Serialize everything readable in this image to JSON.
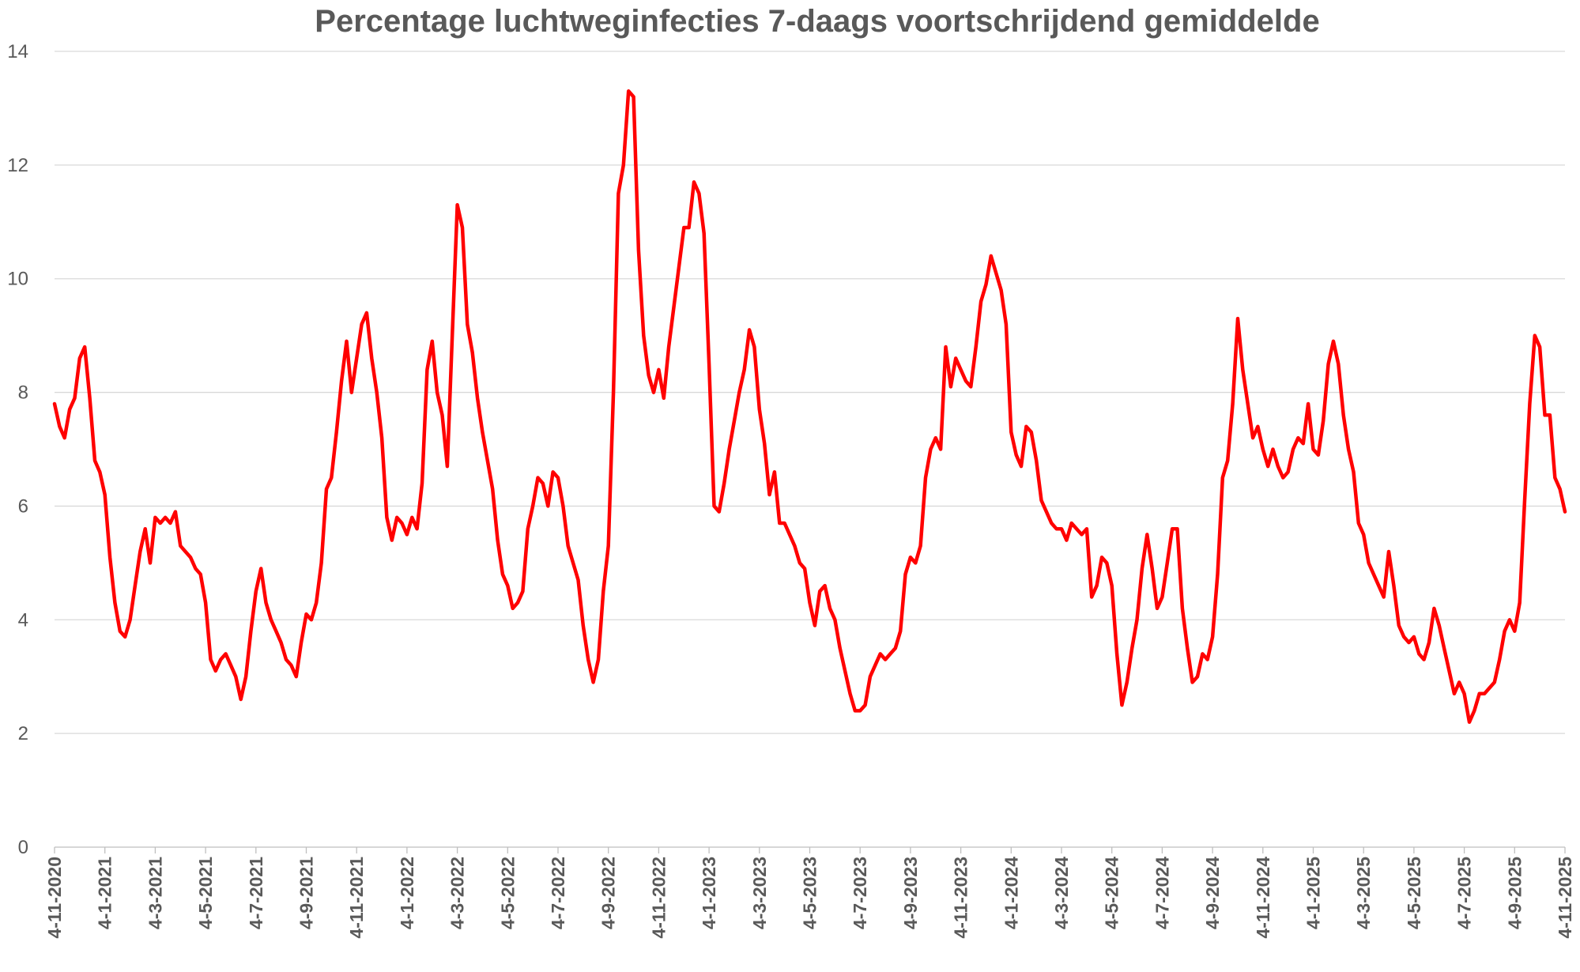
{
  "chart_data": {
    "type": "line",
    "title": "Percentage luchtweginfecties 7-daags voortschrijdend gemiddelde",
    "xlabel": "",
    "ylabel": "",
    "ylim": [
      0,
      14
    ],
    "yticks": [
      0,
      2,
      4,
      6,
      8,
      10,
      12,
      14
    ],
    "grid": true,
    "legend": "none",
    "x_tick_labels": [
      "4-11-2020",
      "4-1-2021",
      "4-3-2021",
      "4-5-2021",
      "4-7-2021",
      "4-9-2021",
      "4-11-2021",
      "4-1-2022",
      "4-3-2022",
      "4-5-2022",
      "4-7-2022",
      "4-9-2022",
      "4-11-2022",
      "4-1-2023",
      "4-3-2023",
      "4-5-2023",
      "4-7-2023",
      "4-9-2023",
      "4-11-2023",
      "4-1-2024",
      "4-3-2024",
      "4-5-2024",
      "4-7-2024",
      "4-9-2024",
      "4-11-2024",
      "4-1-2025",
      "4-3-2025",
      "4-5-2025",
      "4-7-2025",
      "4-9-2025",
      "4-11-2025"
    ],
    "x_unit": "months since 4-11-2020",
    "x_start": 0,
    "x_step": 0.2,
    "x_end": 60,
    "series": [
      {
        "name": "Percentage luchtweginfecties",
        "color": "#ff0000",
        "values": [
          7.8,
          7.4,
          7.2,
          7.7,
          7.9,
          8.6,
          8.8,
          7.9,
          6.8,
          6.6,
          6.2,
          5.1,
          4.3,
          3.8,
          3.7,
          4.0,
          4.6,
          5.2,
          5.6,
          5.0,
          5.8,
          5.7,
          5.8,
          5.7,
          5.9,
          5.3,
          5.2,
          5.1,
          4.9,
          4.8,
          4.3,
          3.3,
          3.1,
          3.3,
          3.4,
          3.2,
          3.0,
          2.6,
          3.0,
          3.8,
          4.5,
          4.9,
          4.3,
          4.0,
          3.8,
          3.6,
          3.3,
          3.2,
          3.0,
          3.6,
          4.1,
          4.0,
          4.3,
          5.0,
          6.3,
          6.5,
          7.3,
          8.2,
          8.9,
          8.0,
          8.6,
          9.2,
          9.4,
          8.6,
          8.0,
          7.2,
          5.8,
          5.4,
          5.8,
          5.7,
          5.5,
          5.8,
          5.6,
          6.4,
          8.4,
          8.9,
          8.0,
          7.6,
          6.7,
          9.0,
          11.3,
          10.9,
          9.2,
          8.7,
          7.9,
          7.3,
          6.8,
          6.3,
          5.4,
          4.8,
          4.6,
          4.2,
          4.3,
          4.5,
          5.6,
          6.0,
          6.5,
          6.4,
          6.0,
          6.6,
          6.5,
          6.0,
          5.3,
          5.0,
          4.7,
          3.9,
          3.3,
          2.9,
          3.3,
          4.5,
          5.3,
          8.0,
          11.5,
          12.0,
          13.3,
          13.2,
          10.5,
          9.0,
          8.3,
          8.0,
          8.4,
          7.9,
          8.8,
          9.5,
          10.2,
          10.9,
          10.9,
          11.7,
          11.5,
          10.8,
          8.5,
          6.0,
          5.9,
          6.4,
          7.0,
          7.5,
          8.0,
          8.4,
          9.1,
          8.8,
          7.7,
          7.1,
          6.2,
          6.6,
          5.7,
          5.7,
          5.5,
          5.3,
          5.0,
          4.9,
          4.3,
          3.9,
          4.5,
          4.6,
          4.2,
          4.0,
          3.5,
          3.1,
          2.7,
          2.4,
          2.4,
          2.5,
          3.0,
          3.2,
          3.4,
          3.3,
          3.4,
          3.5,
          3.8,
          4.8,
          5.1,
          5.0,
          5.3,
          6.5,
          7.0,
          7.2,
          7.0,
          8.8,
          8.1,
          8.6,
          8.4,
          8.2,
          8.1,
          8.8,
          9.6,
          9.9,
          10.4,
          10.1,
          9.8,
          9.2,
          7.3,
          6.9,
          6.7,
          7.4,
          7.3,
          6.8,
          6.1,
          5.9,
          5.7,
          5.6,
          5.6,
          5.4,
          5.7,
          5.6,
          5.5,
          5.6,
          4.4,
          4.6,
          5.1,
          5.0,
          4.6,
          3.4,
          2.5,
          2.9,
          3.5,
          4.0,
          4.9,
          5.5,
          4.9,
          4.2,
          4.4,
          5.0,
          5.6,
          5.6,
          4.2,
          3.5,
          2.9,
          3.0,
          3.4,
          3.3,
          3.7,
          4.8,
          6.5,
          6.8,
          7.8,
          9.3,
          8.4,
          7.8,
          7.2,
          7.4,
          7.0,
          6.7,
          7.0,
          6.7,
          6.5,
          6.6,
          7.0,
          7.2,
          7.1,
          7.8,
          7.0,
          6.9,
          7.5,
          8.5,
          8.9,
          8.5,
          7.6,
          7.0,
          6.6,
          5.7,
          5.5,
          5.0,
          4.8,
          4.6,
          4.4,
          5.2,
          4.6,
          3.9,
          3.7,
          3.6,
          3.7,
          3.4,
          3.3,
          3.6,
          4.2,
          3.9,
          3.5,
          3.1,
          2.7,
          2.9,
          2.7,
          2.2,
          2.4,
          2.7,
          2.7,
          2.8,
          2.9,
          3.3,
          3.8,
          4.0,
          3.8,
          4.3,
          6.1,
          7.8,
          9.0,
          8.8,
          7.6,
          7.6,
          6.5,
          6.3,
          5.9
        ]
      }
    ]
  }
}
